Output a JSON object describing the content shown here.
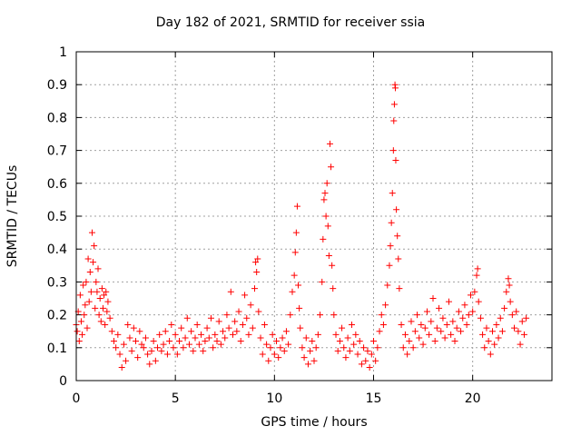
{
  "chart_data": {
    "type": "scatter",
    "title": "Day 182 of 2021, SRMTID for receiver ssia",
    "xlabel": "GPS time / hours",
    "ylabel": "SRMTID / TECUs",
    "xlim": [
      0,
      24
    ],
    "ylim": [
      0,
      1
    ],
    "xticks": [
      0,
      5,
      10,
      15,
      20
    ],
    "yticks": [
      0,
      0.1,
      0.2,
      0.3,
      0.4,
      0.5,
      0.6,
      0.7,
      0.8,
      0.9,
      1
    ],
    "grid": true,
    "marker": "+",
    "series": [
      {
        "name": "SRMTID",
        "color": "#ff0000",
        "points": [
          [
            0.0,
            0.17
          ],
          [
            0.05,
            0.15
          ],
          [
            0.1,
            0.21
          ],
          [
            0.15,
            0.12
          ],
          [
            0.2,
            0.26
          ],
          [
            0.25,
            0.18
          ],
          [
            0.3,
            0.14
          ],
          [
            0.35,
            0.29
          ],
          [
            0.4,
            0.2
          ],
          [
            0.45,
            0.23
          ],
          [
            0.5,
            0.3
          ],
          [
            0.55,
            0.16
          ],
          [
            0.6,
            0.37
          ],
          [
            0.65,
            0.24
          ],
          [
            0.7,
            0.33
          ],
          [
            0.75,
            0.27
          ],
          [
            0.8,
            0.45
          ],
          [
            0.85,
            0.36
          ],
          [
            0.9,
            0.41
          ],
          [
            0.95,
            0.22
          ],
          [
            1.0,
            0.3
          ],
          [
            1.05,
            0.27
          ],
          [
            1.1,
            0.34
          ],
          [
            1.15,
            0.2
          ],
          [
            1.2,
            0.25
          ],
          [
            1.25,
            0.18
          ],
          [
            1.3,
            0.28
          ],
          [
            1.35,
            0.22
          ],
          [
            1.4,
            0.26
          ],
          [
            1.45,
            0.17
          ],
          [
            1.5,
            0.27
          ],
          [
            1.55,
            0.21
          ],
          [
            1.6,
            0.24
          ],
          [
            1.7,
            0.19
          ],
          [
            1.8,
            0.15
          ],
          [
            1.9,
            0.12
          ],
          [
            2.0,
            0.1
          ],
          [
            2.1,
            0.14
          ],
          [
            2.2,
            0.08
          ],
          [
            2.3,
            0.04
          ],
          [
            2.4,
            0.11
          ],
          [
            2.5,
            0.06
          ],
          [
            2.6,
            0.17
          ],
          [
            2.7,
            0.13
          ],
          [
            2.8,
            0.09
          ],
          [
            2.9,
            0.16
          ],
          [
            3.0,
            0.12
          ],
          [
            3.1,
            0.07
          ],
          [
            3.2,
            0.15
          ],
          [
            3.3,
            0.11
          ],
          [
            3.4,
            0.1
          ],
          [
            3.5,
            0.13
          ],
          [
            3.6,
            0.08
          ],
          [
            3.7,
            0.05
          ],
          [
            3.8,
            0.09
          ],
          [
            3.9,
            0.12
          ],
          [
            4.0,
            0.06
          ],
          [
            4.1,
            0.1
          ],
          [
            4.2,
            0.14
          ],
          [
            4.3,
            0.09
          ],
          [
            4.4,
            0.11
          ],
          [
            4.5,
            0.15
          ],
          [
            4.6,
            0.08
          ],
          [
            4.7,
            0.12
          ],
          [
            4.8,
            0.17
          ],
          [
            4.9,
            0.1
          ],
          [
            5.0,
            0.14
          ],
          [
            5.1,
            0.08
          ],
          [
            5.2,
            0.12
          ],
          [
            5.3,
            0.16
          ],
          [
            5.4,
            0.1
          ],
          [
            5.5,
            0.13
          ],
          [
            5.6,
            0.19
          ],
          [
            5.7,
            0.11
          ],
          [
            5.8,
            0.15
          ],
          [
            5.9,
            0.09
          ],
          [
            6.0,
            0.13
          ],
          [
            6.1,
            0.17
          ],
          [
            6.2,
            0.11
          ],
          [
            6.3,
            0.14
          ],
          [
            6.4,
            0.09
          ],
          [
            6.5,
            0.12
          ],
          [
            6.6,
            0.16
          ],
          [
            6.7,
            0.13
          ],
          [
            6.8,
            0.19
          ],
          [
            6.9,
            0.1
          ],
          [
            7.0,
            0.14
          ],
          [
            7.1,
            0.12
          ],
          [
            7.2,
            0.18
          ],
          [
            7.3,
            0.11
          ],
          [
            7.4,
            0.15
          ],
          [
            7.5,
            0.13
          ],
          [
            7.6,
            0.2
          ],
          [
            7.7,
            0.16
          ],
          [
            7.8,
            0.27
          ],
          [
            7.9,
            0.14
          ],
          [
            8.0,
            0.18
          ],
          [
            8.1,
            0.15
          ],
          [
            8.2,
            0.21
          ],
          [
            8.3,
            0.12
          ],
          [
            8.4,
            0.17
          ],
          [
            8.5,
            0.26
          ],
          [
            8.6,
            0.19
          ],
          [
            8.7,
            0.14
          ],
          [
            8.8,
            0.23
          ],
          [
            8.9,
            0.16
          ],
          [
            9.0,
            0.28
          ],
          [
            9.05,
            0.36
          ],
          [
            9.1,
            0.33
          ],
          [
            9.15,
            0.37
          ],
          [
            9.2,
            0.21
          ],
          [
            9.3,
            0.13
          ],
          [
            9.4,
            0.08
          ],
          [
            9.5,
            0.17
          ],
          [
            9.6,
            0.11
          ],
          [
            9.7,
            0.06
          ],
          [
            9.8,
            0.1
          ],
          [
            9.9,
            0.14
          ],
          [
            10.0,
            0.08
          ],
          [
            10.1,
            0.12
          ],
          [
            10.2,
            0.07
          ],
          [
            10.3,
            0.1
          ],
          [
            10.4,
            0.13
          ],
          [
            10.5,
            0.09
          ],
          [
            10.6,
            0.15
          ],
          [
            10.7,
            0.11
          ],
          [
            10.8,
            0.2
          ],
          [
            10.9,
            0.27
          ],
          [
            11.0,
            0.32
          ],
          [
            11.05,
            0.39
          ],
          [
            11.1,
            0.45
          ],
          [
            11.15,
            0.53
          ],
          [
            11.2,
            0.29
          ],
          [
            11.25,
            0.22
          ],
          [
            11.3,
            0.16
          ],
          [
            11.4,
            0.1
          ],
          [
            11.5,
            0.07
          ],
          [
            11.6,
            0.13
          ],
          [
            11.7,
            0.05
          ],
          [
            11.8,
            0.09
          ],
          [
            11.9,
            0.12
          ],
          [
            12.0,
            0.06
          ],
          [
            12.1,
            0.1
          ],
          [
            12.2,
            0.14
          ],
          [
            12.3,
            0.2
          ],
          [
            12.4,
            0.3
          ],
          [
            12.45,
            0.43
          ],
          [
            12.5,
            0.55
          ],
          [
            12.55,
            0.57
          ],
          [
            12.6,
            0.5
          ],
          [
            12.65,
            0.6
          ],
          [
            12.7,
            0.47
          ],
          [
            12.75,
            0.38
          ],
          [
            12.8,
            0.72
          ],
          [
            12.85,
            0.65
          ],
          [
            12.9,
            0.35
          ],
          [
            12.95,
            0.28
          ],
          [
            13.0,
            0.2
          ],
          [
            13.1,
            0.14
          ],
          [
            13.2,
            0.09
          ],
          [
            13.3,
            0.12
          ],
          [
            13.4,
            0.16
          ],
          [
            13.5,
            0.1
          ],
          [
            13.6,
            0.07
          ],
          [
            13.7,
            0.13
          ],
          [
            13.8,
            0.09
          ],
          [
            13.9,
            0.17
          ],
          [
            14.0,
            0.11
          ],
          [
            14.1,
            0.14
          ],
          [
            14.2,
            0.08
          ],
          [
            14.3,
            0.12
          ],
          [
            14.4,
            0.05
          ],
          [
            14.5,
            0.1
          ],
          [
            14.6,
            0.06
          ],
          [
            14.7,
            0.09
          ],
          [
            14.8,
            0.04
          ],
          [
            14.9,
            0.08
          ],
          [
            15.0,
            0.12
          ],
          [
            15.1,
            0.06
          ],
          [
            15.2,
            0.1
          ],
          [
            15.3,
            0.15
          ],
          [
            15.4,
            0.2
          ],
          [
            15.5,
            0.17
          ],
          [
            15.6,
            0.23
          ],
          [
            15.7,
            0.29
          ],
          [
            15.8,
            0.35
          ],
          [
            15.85,
            0.41
          ],
          [
            15.9,
            0.48
          ],
          [
            15.95,
            0.57
          ],
          [
            16.0,
            0.7
          ],
          [
            16.02,
            0.79
          ],
          [
            16.05,
            0.84
          ],
          [
            16.08,
            0.9
          ],
          [
            16.1,
            0.89
          ],
          [
            16.12,
            0.67
          ],
          [
            16.15,
            0.52
          ],
          [
            16.2,
            0.44
          ],
          [
            16.25,
            0.37
          ],
          [
            16.3,
            0.28
          ],
          [
            16.4,
            0.17
          ],
          [
            16.5,
            0.1
          ],
          [
            16.6,
            0.14
          ],
          [
            16.7,
            0.08
          ],
          [
            16.8,
            0.12
          ],
          [
            16.9,
            0.18
          ],
          [
            17.0,
            0.1
          ],
          [
            17.1,
            0.15
          ],
          [
            17.2,
            0.2
          ],
          [
            17.3,
            0.13
          ],
          [
            17.4,
            0.17
          ],
          [
            17.5,
            0.11
          ],
          [
            17.6,
            0.16
          ],
          [
            17.7,
            0.21
          ],
          [
            17.8,
            0.14
          ],
          [
            17.9,
            0.18
          ],
          [
            18.0,
            0.25
          ],
          [
            18.1,
            0.12
          ],
          [
            18.2,
            0.16
          ],
          [
            18.3,
            0.22
          ],
          [
            18.4,
            0.15
          ],
          [
            18.5,
            0.19
          ],
          [
            18.6,
            0.13
          ],
          [
            18.7,
            0.17
          ],
          [
            18.8,
            0.24
          ],
          [
            18.9,
            0.14
          ],
          [
            19.0,
            0.18
          ],
          [
            19.1,
            0.12
          ],
          [
            19.2,
            0.16
          ],
          [
            19.3,
            0.21
          ],
          [
            19.4,
            0.15
          ],
          [
            19.5,
            0.19
          ],
          [
            19.6,
            0.23
          ],
          [
            19.7,
            0.17
          ],
          [
            19.8,
            0.2
          ],
          [
            19.9,
            0.26
          ],
          [
            20.0,
            0.21
          ],
          [
            20.1,
            0.27
          ],
          [
            20.2,
            0.32
          ],
          [
            20.25,
            0.34
          ],
          [
            20.3,
            0.24
          ],
          [
            20.4,
            0.19
          ],
          [
            20.5,
            0.14
          ],
          [
            20.6,
            0.1
          ],
          [
            20.7,
            0.16
          ],
          [
            20.8,
            0.12
          ],
          [
            20.9,
            0.08
          ],
          [
            21.0,
            0.15
          ],
          [
            21.1,
            0.11
          ],
          [
            21.2,
            0.17
          ],
          [
            21.3,
            0.13
          ],
          [
            21.4,
            0.19
          ],
          [
            21.5,
            0.15
          ],
          [
            21.6,
            0.22
          ],
          [
            21.7,
            0.27
          ],
          [
            21.8,
            0.31
          ],
          [
            21.85,
            0.29
          ],
          [
            21.9,
            0.24
          ],
          [
            22.0,
            0.2
          ],
          [
            22.1,
            0.16
          ],
          [
            22.2,
            0.21
          ],
          [
            22.3,
            0.15
          ],
          [
            22.4,
            0.11
          ],
          [
            22.5,
            0.18
          ],
          [
            22.6,
            0.14
          ],
          [
            22.7,
            0.19
          ]
        ]
      }
    ]
  }
}
